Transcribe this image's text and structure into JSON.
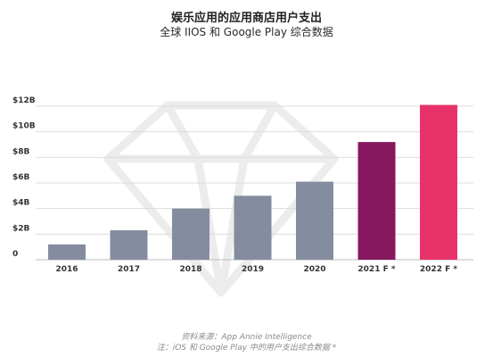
{
  "chart_data": {
    "type": "bar",
    "title": "娱乐应用的应用商店用户支出",
    "subtitle": "全球 IIOS 和 Google Play 综合数据",
    "categories": [
      "2016",
      "2017",
      "2018",
      "2019",
      "2020",
      "2021 F *",
      "2022 F *"
    ],
    "values": [
      1.2,
      2.3,
      4.0,
      5.0,
      6.1,
      9.2,
      12.1
    ],
    "value_unit": "billion USD",
    "yticks": [
      "0",
      "$2B",
      "$4B",
      "$6B",
      "$8B",
      "$10B",
      "$12B"
    ],
    "ylim": [
      0,
      12
    ],
    "grid": true,
    "legend": "none",
    "bar_colors": [
      "#848d9f",
      "#848d9f",
      "#848d9f",
      "#848d9f",
      "#848d9f",
      "#86185f",
      "#e8336a"
    ]
  },
  "footer": {
    "source": "资料来源：App Annie Intelligence",
    "note": "注：iOS 和 Google Play 中的用户支出综合数据 *"
  }
}
